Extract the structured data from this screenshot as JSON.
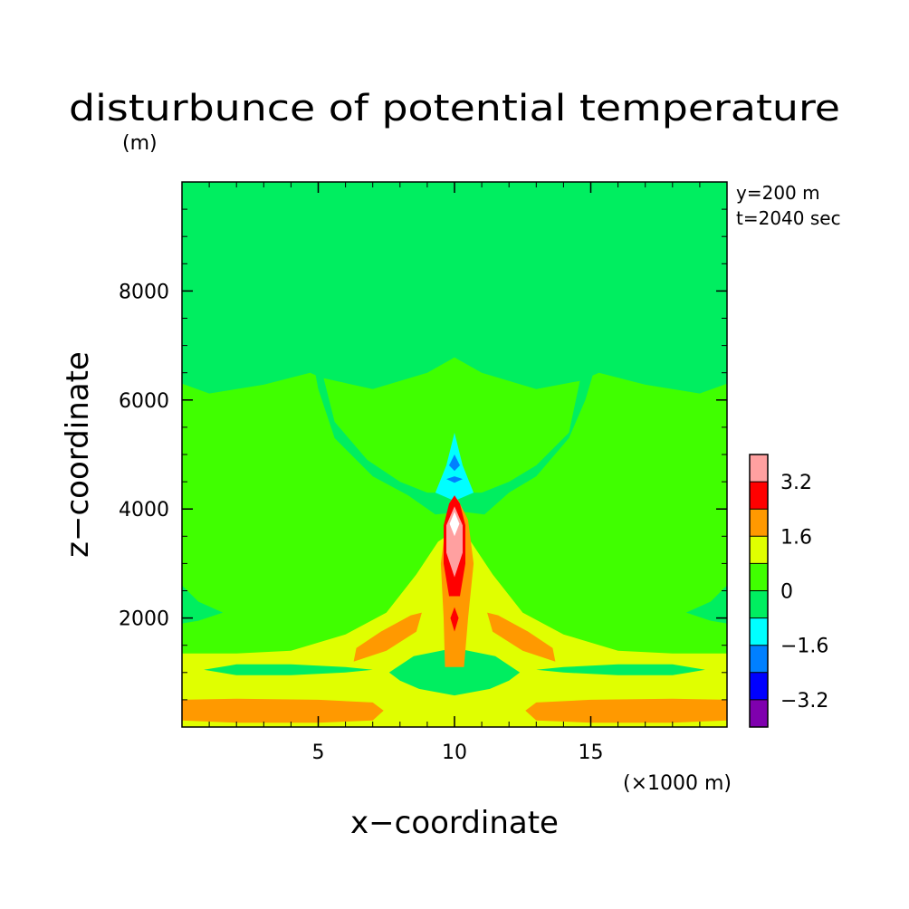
{
  "chart_data": {
    "type": "heatmap",
    "title": "disturbunce of potential temperature",
    "z_unit_label": "(m)",
    "xlabel": "x−coordinate",
    "ylabel": "z−coordinate",
    "x_unit_label": "(×1000 m)",
    "annotations": [
      "y=200 m",
      "t=2040 sec"
    ],
    "xlim": [
      0,
      20
    ],
    "ylim": [
      0,
      10000
    ],
    "x_ticks": [
      5,
      10,
      15
    ],
    "x_tick_labels": [
      "5",
      "10",
      "15"
    ],
    "y_ticks": [
      2000,
      4000,
      6000,
      8000
    ],
    "y_tick_labels": [
      "2000",
      "4000",
      "6000",
      "8000"
    ],
    "colorbar": {
      "levels": [
        {
          "range": [
            -4.0,
            -3.2
          ],
          "color": "#7f00ae"
        },
        {
          "range": [
            -3.2,
            -2.4
          ],
          "color": "#0000ff"
        },
        {
          "range": [
            -2.4,
            -1.6
          ],
          "color": "#0080ff"
        },
        {
          "range": [
            -1.6,
            -0.8
          ],
          "color": "#00ffff"
        },
        {
          "range": [
            -0.8,
            0.0
          ],
          "color": "#00ee60"
        },
        {
          "range": [
            0.0,
            0.8
          ],
          "color": "#40ff00"
        },
        {
          "range": [
            0.8,
            1.6
          ],
          "color": "#e0ff00"
        },
        {
          "range": [
            1.6,
            2.4
          ],
          "color": "#ff9900"
        },
        {
          "range": [
            2.4,
            3.2
          ],
          "color": "#ff0000"
        },
        {
          "range": [
            3.2,
            4.0
          ],
          "color": "#ffa0a0"
        }
      ],
      "tick_labels": [
        "3.2",
        "1.6",
        "0",
        "−1.6",
        "−3.2"
      ],
      "tick_values": [
        3.2,
        1.6,
        0,
        -1.6,
        -3.2
      ]
    },
    "regions": [
      {
        "level": 0.4,
        "color": "#40ff00",
        "polygon": [
          [
            0,
            0
          ],
          [
            20,
            0
          ],
          [
            20,
            10000
          ],
          [
            0,
            10000
          ]
        ]
      },
      {
        "level": -0.4,
        "color": "#00ee60",
        "polygon": [
          [
            0,
            6300
          ],
          [
            1,
            6120
          ],
          [
            3,
            6280
          ],
          [
            4.7,
            6500
          ],
          [
            5.4,
            6350
          ],
          [
            7,
            6200
          ],
          [
            9,
            6500
          ],
          [
            10,
            6780
          ],
          [
            11,
            6500
          ],
          [
            13,
            6200
          ],
          [
            14.6,
            6350
          ],
          [
            15.3,
            6500
          ],
          [
            17,
            6280
          ],
          [
            19,
            6120
          ],
          [
            20,
            6300
          ],
          [
            20,
            10000
          ],
          [
            0,
            10000
          ]
        ]
      },
      {
        "level": -0.4,
        "color": "#00ee60",
        "polygon": [
          [
            4.7,
            9700
          ],
          [
            6,
            9800
          ],
          [
            9,
            9900
          ],
          [
            11,
            9900
          ],
          [
            14,
            9800
          ],
          [
            15.3,
            9700
          ],
          [
            15.4,
            7000
          ],
          [
            14.8,
            6000
          ],
          [
            14.2,
            5300
          ],
          [
            13,
            4600
          ],
          [
            12,
            4300
          ],
          [
            11.1,
            3900
          ],
          [
            10.3,
            3950
          ],
          [
            9.3,
            3900
          ],
          [
            8.3,
            4250
          ],
          [
            7,
            4600
          ],
          [
            5.6,
            5300
          ],
          [
            5,
            6200
          ],
          [
            4.7,
            7000
          ]
        ]
      },
      {
        "level": 0.4,
        "color": "#40ff00",
        "polygon": [
          [
            5.2,
            6400
          ],
          [
            7,
            6200
          ],
          [
            9,
            6500
          ],
          [
            10,
            6780
          ],
          [
            11,
            6500
          ],
          [
            13,
            6200
          ],
          [
            14.6,
            6350
          ],
          [
            14.2,
            5400
          ],
          [
            13,
            4800
          ],
          [
            12,
            4500
          ],
          [
            11,
            4300
          ],
          [
            10,
            4300
          ],
          [
            9,
            4300
          ],
          [
            8,
            4500
          ],
          [
            6.8,
            4900
          ],
          [
            5.6,
            5600
          ]
        ]
      },
      {
        "level": -0.4,
        "color": "#00ee60",
        "polygon": [
          [
            0,
            2600
          ],
          [
            0.6,
            2300
          ],
          [
            1.5,
            2100
          ],
          [
            0.6,
            1950
          ],
          [
            0,
            1900
          ]
        ]
      },
      {
        "level": -0.4,
        "color": "#00ee60",
        "polygon": [
          [
            20,
            2600
          ],
          [
            19.4,
            2300
          ],
          [
            18.5,
            2100
          ],
          [
            19.4,
            1950
          ],
          [
            20,
            1900
          ]
        ]
      },
      {
        "level": 1.2,
        "color": "#e0ff00",
        "polygon": [
          [
            0,
            0
          ],
          [
            20,
            0
          ],
          [
            20,
            1350
          ],
          [
            18,
            1350
          ],
          [
            16,
            1400
          ],
          [
            14,
            1700
          ],
          [
            12.5,
            2100
          ],
          [
            11.4,
            2800
          ],
          [
            10.6,
            3400
          ],
          [
            10,
            3600
          ],
          [
            9.4,
            3400
          ],
          [
            8.6,
            2800
          ],
          [
            7.5,
            2100
          ],
          [
            6,
            1700
          ],
          [
            4,
            1400
          ],
          [
            2,
            1350
          ],
          [
            0,
            1350
          ]
        ]
      },
      {
        "level": -0.4,
        "color": "#00ee60",
        "polygon": [
          [
            0.8,
            1050
          ],
          [
            2,
            1150
          ],
          [
            4,
            1150
          ],
          [
            6,
            1100
          ],
          [
            7,
            1050
          ],
          [
            6,
            1000
          ],
          [
            4,
            950
          ],
          [
            2,
            950
          ]
        ]
      },
      {
        "level": -0.4,
        "color": "#00ee60",
        "polygon": [
          [
            19.2,
            1050
          ],
          [
            18,
            1150
          ],
          [
            16,
            1150
          ],
          [
            14,
            1100
          ],
          [
            13,
            1050
          ],
          [
            14,
            1000
          ],
          [
            16,
            950
          ],
          [
            18,
            950
          ]
        ]
      },
      {
        "level": -0.4,
        "color": "#00ee60",
        "polygon": [
          [
            8,
            850
          ],
          [
            8.7,
            700
          ],
          [
            10,
            580
          ],
          [
            11.3,
            700
          ],
          [
            12,
            850
          ],
          [
            12.4,
            1000
          ],
          [
            11.5,
            1300
          ],
          [
            10,
            1450
          ],
          [
            8.5,
            1300
          ],
          [
            7.6,
            1000
          ]
        ]
      },
      {
        "level": 1.2,
        "color": "#e0ff00",
        "polygon": [
          [
            9.5,
            400
          ],
          [
            10,
            430
          ],
          [
            10.6,
            400
          ],
          [
            10,
            370
          ]
        ]
      },
      {
        "level": 2.0,
        "color": "#ff9900",
        "polygon": [
          [
            0,
            120
          ],
          [
            2,
            80
          ],
          [
            5,
            80
          ],
          [
            7,
            120
          ],
          [
            7.4,
            300
          ],
          [
            7,
            450
          ],
          [
            5,
            500
          ],
          [
            2,
            520
          ],
          [
            0,
            500
          ]
        ]
      },
      {
        "level": 2.0,
        "color": "#ff9900",
        "polygon": [
          [
            20,
            120
          ],
          [
            18,
            80
          ],
          [
            15,
            80
          ],
          [
            13,
            120
          ],
          [
            12.6,
            300
          ],
          [
            13,
            450
          ],
          [
            15,
            500
          ],
          [
            18,
            520
          ],
          [
            20,
            500
          ]
        ]
      },
      {
        "level": 2.0,
        "color": "#ff9900",
        "polygon": [
          [
            6.3,
            1200
          ],
          [
            7.5,
            1400
          ],
          [
            8.6,
            1750
          ],
          [
            8.8,
            2100
          ],
          [
            8.4,
            2050
          ],
          [
            7.3,
            1750
          ],
          [
            6.4,
            1450
          ]
        ]
      },
      {
        "level": 2.0,
        "color": "#ff9900",
        "polygon": [
          [
            13.7,
            1200
          ],
          [
            12.5,
            1400
          ],
          [
            11.4,
            1750
          ],
          [
            11.2,
            2100
          ],
          [
            11.6,
            2050
          ],
          [
            12.7,
            1750
          ],
          [
            13.6,
            1450
          ]
        ]
      },
      {
        "level": 2.0,
        "color": "#ff9900",
        "polygon": [
          [
            9.65,
            1100
          ],
          [
            10.35,
            1100
          ],
          [
            10.5,
            2000
          ],
          [
            10.7,
            3000
          ],
          [
            10.5,
            3800
          ],
          [
            10.1,
            4200
          ],
          [
            9.7,
            3800
          ],
          [
            9.5,
            3000
          ],
          [
            9.6,
            2000
          ]
        ]
      },
      {
        "level": -1.2,
        "color": "#00ffff",
        "polygon": [
          [
            9.3,
            4300
          ],
          [
            9.7,
            4800
          ],
          [
            10,
            5400
          ],
          [
            10.3,
            4800
          ],
          [
            10.7,
            4300
          ],
          [
            10,
            4150
          ]
        ]
      },
      {
        "level": 2.8,
        "color": "#ff0000",
        "polygon": [
          [
            10,
            1750
          ],
          [
            10.15,
            2000
          ],
          [
            10,
            2200
          ],
          [
            9.85,
            2000
          ]
        ]
      },
      {
        "level": 2.8,
        "color": "#ff0000",
        "polygon": [
          [
            9.8,
            2400
          ],
          [
            10.2,
            2400
          ],
          [
            10.4,
            3000
          ],
          [
            10.4,
            3700
          ],
          [
            10.2,
            4100
          ],
          [
            10,
            4250
          ],
          [
            9.8,
            4100
          ],
          [
            9.6,
            3700
          ],
          [
            9.6,
            3000
          ]
        ]
      },
      {
        "level": -2.0,
        "color": "#0080ff",
        "polygon": [
          [
            9.8,
            4800
          ],
          [
            10,
            5000
          ],
          [
            10.2,
            4800
          ],
          [
            10,
            4700
          ]
        ]
      },
      {
        "level": -2.0,
        "color": "#0080ff",
        "polygon": [
          [
            9.7,
            4550
          ],
          [
            10,
            4600
          ],
          [
            10.3,
            4550
          ],
          [
            10,
            4480
          ]
        ]
      },
      {
        "level": 3.6,
        "color": "#ffa0a0",
        "polygon": [
          [
            10,
            2750
          ],
          [
            10.3,
            3200
          ],
          [
            10.3,
            3700
          ],
          [
            10,
            4050
          ],
          [
            9.7,
            3700
          ],
          [
            9.7,
            3200
          ]
        ]
      },
      {
        "level": 4.0,
        "color": "#ffffff",
        "polygon": [
          [
            10,
            3500
          ],
          [
            10.18,
            3730
          ],
          [
            10,
            3950
          ],
          [
            9.82,
            3730
          ]
        ]
      }
    ]
  }
}
